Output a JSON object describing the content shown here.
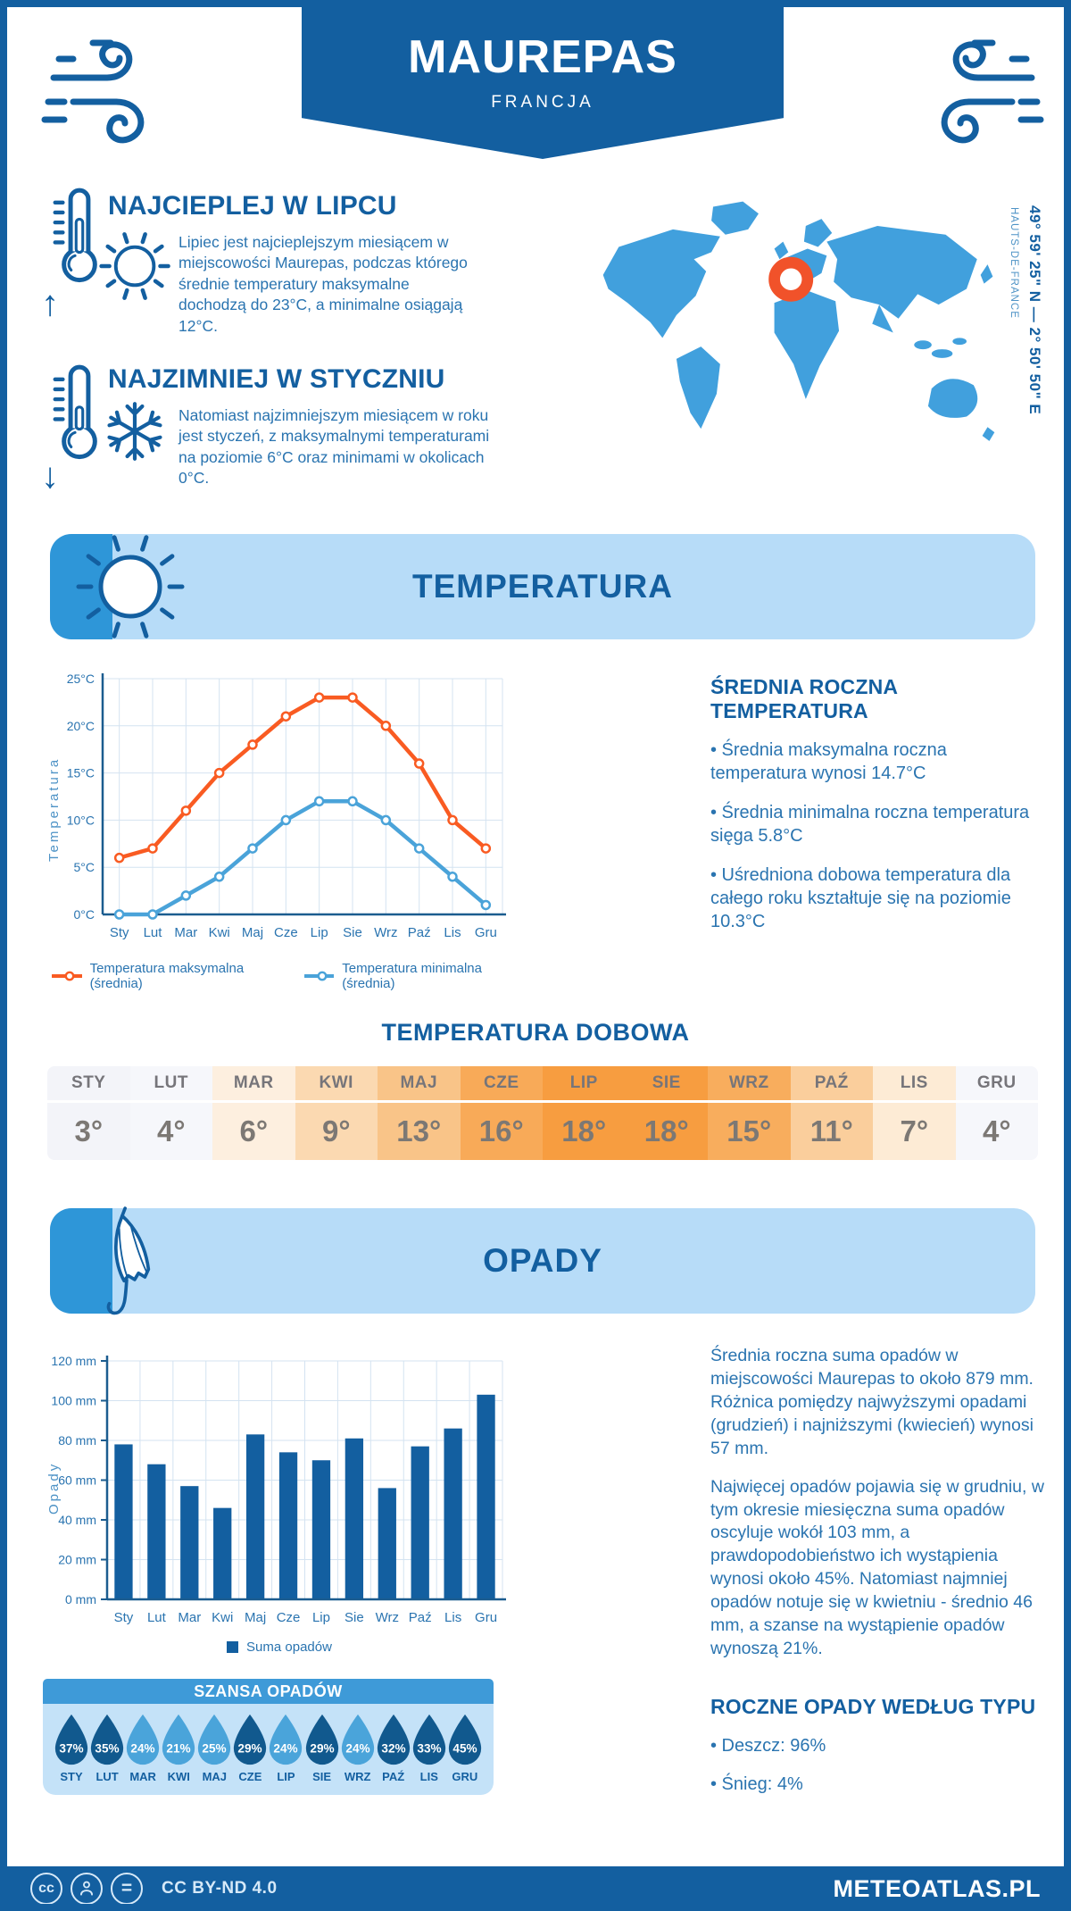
{
  "header": {
    "title": "MAUREPAS",
    "subtitle": "FRANCJA"
  },
  "intro": {
    "warm": {
      "title": "NAJCIEPLEJ W LIPCU",
      "body": "Lipiec jest najcieplejszym miesiącem w miejscowości Maurepas, podczas którego średnie temperatury maksymalne dochodzą do 23°C, a minimalne osiągają 12°C."
    },
    "cold": {
      "title": "NAJZIMNIEJ W STYCZNIU",
      "body": "Natomiast najzimniejszym miesiącem w roku jest styczeń, z maksymalnymi temperaturami na poziomie 6°C oraz minimami w okolicach 0°C."
    },
    "location": {
      "coordinates": "49° 59' 25\" N — 2° 50' 50\" E",
      "region": "HAUTS-DE-FRANCE"
    }
  },
  "temperature": {
    "banner_title": "TEMPERATURA",
    "annual": {
      "heading": "ŚREDNIA ROCZNA TEMPERATURA",
      "bullets": [
        "Średnia maksymalna roczna temperatura wynosi 14.7°C",
        "Średnia minimalna roczna temperatura sięga 5.8°C",
        "Uśredniona dobowa temperatura dla całego roku kształtuje się na poziomie 10.3°C"
      ]
    },
    "daily": {
      "title": "TEMPERATURA DOBOWA",
      "months": [
        "STY",
        "LUT",
        "MAR",
        "KWI",
        "MAJ",
        "CZE",
        "LIP",
        "SIE",
        "WRZ",
        "PAŹ",
        "LIS",
        "GRU"
      ],
      "values": [
        3,
        4,
        6,
        9,
        13,
        16,
        18,
        18,
        15,
        11,
        7,
        4
      ],
      "cell_colors": [
        "#f3f4f9",
        "#f6f7fb",
        "#fdefdf",
        "#fbd9b1",
        "#f9c488",
        "#f8aa58",
        "#f79d40",
        "#f79d40",
        "#f8ad5d",
        "#face9c",
        "#fdebd5",
        "#f6f7fb"
      ]
    }
  },
  "precipitation": {
    "banner_title": "OPADY",
    "paragraphs": [
      "Średnia roczna suma opadów w miejscowości Maurepas to około 879 mm. Różnica pomiędzy najwyższymi opadami (grudzień) i najniższymi (kwiecień) wynosi 57 mm.",
      "Najwięcej opadów pojawia się w grudniu, w tym okresie miesięczna suma opadów oscyluje wokół 103 mm, a prawdopodobieństwo ich wystąpienia wynosi około 45%. Natomiast najmniej opadów notuje się w kwietniu - średnio 46 mm, a szanse na wystąpienie opadów wynoszą 21%."
    ],
    "type": {
      "heading": "ROCZNE OPADY WEDŁUG TYPU",
      "bullets": [
        "Deszcz: 96%",
        "Śnieg: 4%"
      ]
    },
    "chance": {
      "title": "SZANSA OPADÓW",
      "months": [
        "STY",
        "LUT",
        "MAR",
        "KWI",
        "MAJ",
        "CZE",
        "LIP",
        "SIE",
        "WRZ",
        "PAŹ",
        "LIS",
        "GRU"
      ],
      "values": [
        37,
        35,
        24,
        21,
        25,
        29,
        24,
        29,
        24,
        32,
        33,
        45
      ],
      "dark": [
        true,
        true,
        false,
        false,
        false,
        true,
        false,
        true,
        false,
        true,
        true,
        true
      ]
    }
  },
  "chart_data": [
    {
      "type": "line",
      "title": "TEMPERATURA",
      "categories": [
        "Sty",
        "Lut",
        "Mar",
        "Kwi",
        "Maj",
        "Cze",
        "Lip",
        "Sie",
        "Wrz",
        "Paź",
        "Lis",
        "Gru"
      ],
      "series": [
        {
          "name": "Temperatura maksymalna (średnia)",
          "color": "#f95b22",
          "values": [
            6,
            7,
            11,
            15,
            18,
            21,
            23,
            23,
            20,
            16,
            10,
            7
          ]
        },
        {
          "name": "Temperatura minimalna (średnia)",
          "color": "#4aa3d9",
          "values": [
            0,
            0,
            2,
            4,
            7,
            10,
            12,
            12,
            10,
            7,
            4,
            1
          ]
        }
      ],
      "ylabel": "Temperatura",
      "ylim": [
        0,
        25
      ],
      "ytick_step": 5,
      "ytick_suffix": "°C",
      "grid": true,
      "legend_position": "bottom"
    },
    {
      "type": "bar",
      "title": "OPADY",
      "categories": [
        "Sty",
        "Lut",
        "Mar",
        "Kwi",
        "Maj",
        "Cze",
        "Lip",
        "Sie",
        "Wrz",
        "Paź",
        "Lis",
        "Gru"
      ],
      "series": [
        {
          "name": "Suma opadów",
          "color": "#135fa0",
          "values": [
            78,
            68,
            57,
            46,
            83,
            74,
            70,
            81,
            56,
            77,
            86,
            103
          ]
        }
      ],
      "ylabel": "Opady",
      "ylim": [
        0,
        120
      ],
      "ytick_step": 20,
      "ytick_suffix": " mm",
      "grid": true,
      "legend_position": "bottom"
    }
  ],
  "footer": {
    "license": "CC BY-ND 4.0",
    "cc_icon": "cc",
    "nd_icon": "=",
    "site": "METEOATLAS.PL"
  },
  "colors": {
    "primary": "#135fa0",
    "body_text": "#2a74b0",
    "banner_bg": "#b7dcf8",
    "banner_strip": "#2e96d8",
    "map_blue": "#41a0dd",
    "marker_orange": "#f1522a",
    "line_max": "#f95b22",
    "line_min": "#4aa3d9",
    "grid": "#d4e3f1",
    "axis": "#1b5c8f",
    "droplet_dark": "#11598e",
    "droplet_light": "#4aa4da",
    "chance_header": "#3e9ad8",
    "chance_bg": "#c4e2f8"
  }
}
